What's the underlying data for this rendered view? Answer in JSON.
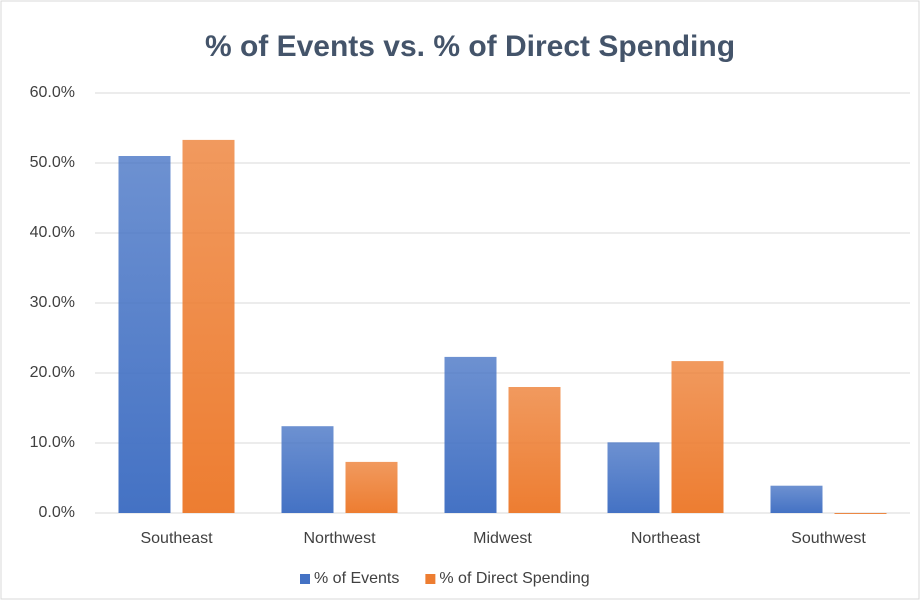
{
  "chart_data": {
    "type": "bar",
    "title": "% of Events vs. % of Direct Spending",
    "categories": [
      "Southeast",
      "Northwest",
      "Midwest",
      "Northeast",
      "Southwest"
    ],
    "series": [
      {
        "name": "% of Events",
        "color": "#4472c4",
        "values": [
          51.0,
          12.4,
          22.3,
          10.1,
          3.9
        ]
      },
      {
        "name": "% of Direct Spending",
        "color": "#ed7d31",
        "values": [
          53.3,
          7.3,
          18.0,
          21.7,
          -0.1
        ]
      }
    ],
    "ylim": [
      0,
      60
    ],
    "yticks": [
      {
        "value": 0,
        "label": "0.0%"
      },
      {
        "value": 10,
        "label": "10.0%"
      },
      {
        "value": 20,
        "label": "20.0%"
      },
      {
        "value": 30,
        "label": "30.0%"
      },
      {
        "value": 40,
        "label": "40.0%"
      },
      {
        "value": 50,
        "label": "50.0%"
      },
      {
        "value": 60,
        "label": "60.0%"
      }
    ],
    "grid": true,
    "legend": "bottom"
  }
}
